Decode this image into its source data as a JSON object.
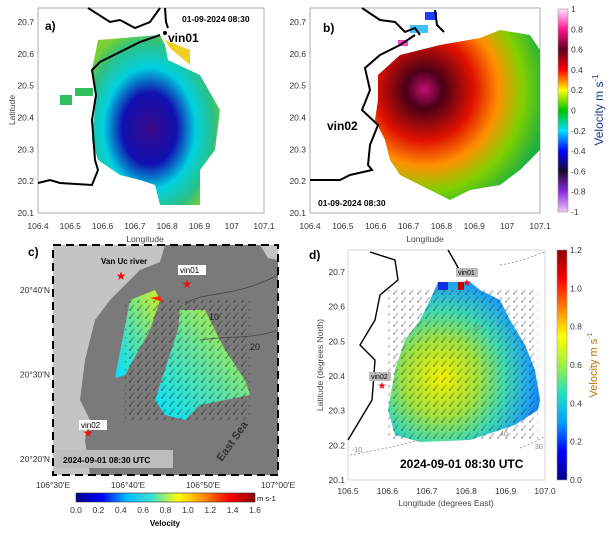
{
  "panels": {
    "a": {
      "label": "a)",
      "timestamp": "01-09-2024 08:30",
      "station": "vin01",
      "xlabel": "Longitude",
      "ylabel": "Latitude",
      "xticks": [
        "106.4",
        "106.5",
        "106.6",
        "106.7",
        "106.8",
        "106.9",
        "107",
        "107.1"
      ],
      "yticks": [
        "20.1",
        "20.2",
        "20.3",
        "20.4",
        "20.5",
        "20.6",
        "20.7"
      ],
      "xlim": [
        106.4,
        107.1
      ],
      "ylim": [
        20.1,
        20.75
      ]
    },
    "b": {
      "label": "b)",
      "timestamp": "01-09-2024 08:30",
      "station": "vin02",
      "xlabel": "Longitude",
      "ylabel": "Latitude",
      "xticks": [
        "106.4",
        "106.5",
        "106.6",
        "106.7",
        "106.8",
        "106.9",
        "107",
        "107.1"
      ],
      "yticks": [
        "20.1",
        "20.2",
        "20.3",
        "20.4",
        "20.5",
        "20.6",
        "20.7"
      ],
      "xlim": [
        106.4,
        107.1
      ],
      "ylim": [
        20.1,
        20.75
      ],
      "colorbar": {
        "title": "Velocity m s",
        "title_sup": "-1",
        "ticks": [
          "-1",
          "-0.8",
          "-0.6",
          "-0.4",
          "-0.2",
          "0",
          "0.2",
          "0.4",
          "0.6",
          "0.8",
          "1"
        ],
        "range": [
          -1,
          1
        ],
        "colors": [
          "#f0c8f0",
          "#8a2be2",
          "#1a0a2a",
          "#0000ff",
          "#00e0ff",
          "#00c000",
          "#ffff00",
          "#ff0000",
          "#5a0020",
          "#ff1493",
          "#ffe0ff"
        ]
      }
    },
    "c": {
      "label": "c)",
      "timestamp": "2024-09-01 08:30 UTC",
      "stations": [
        "vin01",
        "vin02"
      ],
      "river_label": "Van Uc river",
      "sea_label": "East Sea",
      "contours": [
        "10",
        "20"
      ],
      "xticks": [
        "106°30'E",
        "106°40'E",
        "106°50'E",
        "107°00'E"
      ],
      "yticks": [
        "20°20'N",
        "20°30'N",
        "20°40'N"
      ],
      "colorbar": {
        "title": "Velocity",
        "unit": "m s-1",
        "ticks": [
          "0.0",
          "0.2",
          "0.4",
          "0.6",
          "0.8",
          "1.0",
          "1.2",
          "1.4",
          "1.6"
        ],
        "range": [
          0,
          1.6
        ],
        "colors": [
          "#00008b",
          "#0000ff",
          "#00bfff",
          "#40e0d0",
          "#ffff00",
          "#ff8c00",
          "#ff0000",
          "#8b0000"
        ]
      }
    },
    "d": {
      "label": "d)",
      "timestamp": "2024-09-01 08:30 UTC",
      "stations": [
        "vin01",
        "vin02"
      ],
      "contours": [
        "-10",
        "20",
        "30",
        "40"
      ],
      "xlabel": "Longitude (degrees East)",
      "ylabel": "Latitude (degrees North)",
      "xticks": [
        "106.5",
        "106.6",
        "106.7",
        "106.8",
        "106.9",
        "107.0"
      ],
      "yticks": [
        "20.1",
        "20.2",
        "20.3",
        "20.4",
        "20.5",
        "20.6",
        "20.7"
      ],
      "xlim": [
        106.5,
        107.0
      ],
      "ylim": [
        20.1,
        20.77
      ],
      "colorbar": {
        "title": "Velocity m s",
        "title_sup": "-1",
        "ticks": [
          "0.0",
          "0.2",
          "0.4",
          "0.6",
          "0.8",
          "1.0",
          "1.2"
        ],
        "range": [
          0,
          1.2
        ],
        "colors": [
          "#00008b",
          "#0000ff",
          "#00a0ff",
          "#20e0c0",
          "#a0f040",
          "#ffff00",
          "#ff8000",
          "#ff0000",
          "#8b0000"
        ]
      }
    }
  }
}
